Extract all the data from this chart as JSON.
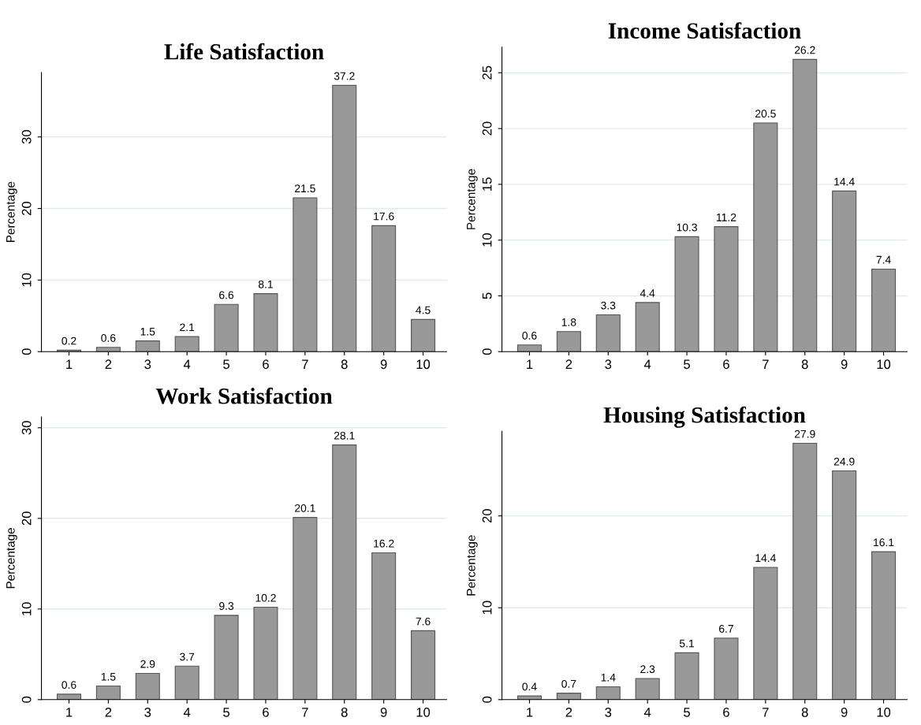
{
  "chart_data": [
    {
      "type": "bar",
      "title": "Life Satisfaction",
      "ylabel": "Percentage",
      "categories": [
        "1",
        "2",
        "3",
        "4",
        "5",
        "6",
        "7",
        "8",
        "9",
        "10"
      ],
      "values": [
        0.2,
        0.6,
        1.5,
        2.1,
        6.6,
        8.1,
        21.5,
        37.2,
        17.6,
        4.5
      ],
      "color": "#999999",
      "ylim": [
        0,
        39
      ],
      "yticks": [
        0,
        10,
        20,
        30
      ],
      "grid": "y",
      "data_labels": true
    },
    {
      "type": "bar",
      "title": "Income Satisfaction",
      "ylabel": "Percentage",
      "categories": [
        "1",
        "2",
        "3",
        "4",
        "5",
        "6",
        "7",
        "8",
        "9",
        "10"
      ],
      "values": [
        0.6,
        1.8,
        3.3,
        4.4,
        10.3,
        11.2,
        20.5,
        26.2,
        14.4,
        7.4
      ],
      "color": "#999999",
      "ylim": [
        0,
        27.3
      ],
      "yticks": [
        0,
        5,
        10,
        15,
        20,
        25
      ],
      "grid": "y",
      "data_labels": true
    },
    {
      "type": "bar",
      "title": "Work Satisfaction",
      "ylabel": "Percentage",
      "categories": [
        "1",
        "2",
        "3",
        "4",
        "5",
        "6",
        "7",
        "8",
        "9",
        "10"
      ],
      "values": [
        0.6,
        1.5,
        2.9,
        3.7,
        9.3,
        10.2,
        20.1,
        28.1,
        16.2,
        7.6
      ],
      "color": "#999999",
      "ylim": [
        0,
        31.2
      ],
      "yticks": [
        0,
        10,
        20,
        30
      ],
      "grid": "y",
      "data_labels": true
    },
    {
      "type": "bar",
      "title": "Housing Satisfaction",
      "ylabel": "Percentage",
      "categories": [
        "1",
        "2",
        "3",
        "4",
        "5",
        "6",
        "7",
        "8",
        "9",
        "10"
      ],
      "values": [
        0.4,
        0.7,
        1.4,
        2.3,
        5.1,
        6.7,
        14.4,
        27.9,
        24.9,
        16.1
      ],
      "color": "#999999",
      "ylim": [
        0,
        29.2
      ],
      "yticks": [
        0,
        10,
        20
      ],
      "grid": "y",
      "data_labels": true
    }
  ]
}
